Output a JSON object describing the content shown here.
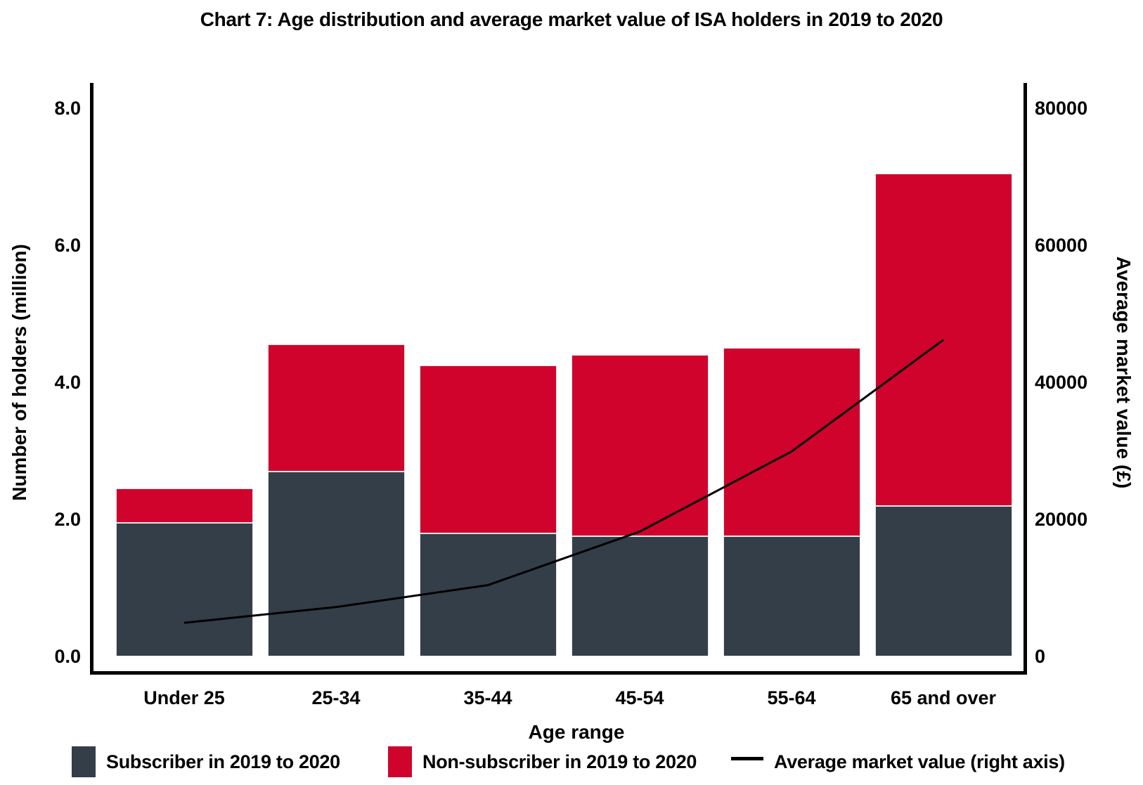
{
  "title": "Chart 7: Age distribution and average market value of ISA holders in 2019 to 2020",
  "colors": {
    "subscriber_bar": "#333e48",
    "non_subscriber_bar": "#d0032d",
    "line": "#000000",
    "axis": "#000000"
  },
  "chart_data": {
    "type": "bar",
    "stacked": true,
    "grid": false,
    "legend_position": "bottom",
    "title": "Chart 7: Age distribution and average market value of ISA holders in 2019 to 2020",
    "xlabel": "Age range",
    "ylabel_left": "Number of holders (million)",
    "ylabel_right": "Average market value (£)",
    "categories": [
      "Under 25",
      "25-34",
      "35-44",
      "45-54",
      "55-64",
      "65 and over"
    ],
    "series": [
      {
        "name": "Subscriber in 2019 to 2020",
        "type": "bar",
        "axis": "left",
        "color": "#333e48",
        "values": [
          1.95,
          2.7,
          1.8,
          1.75,
          1.75,
          2.2
        ]
      },
      {
        "name": "Non-subscriber in 2019 to 2020",
        "type": "bar",
        "axis": "left",
        "color": "#d0032d",
        "values": [
          0.5,
          1.85,
          2.45,
          2.65,
          2.75,
          4.85
        ]
      },
      {
        "name": "Average market value (right axis)",
        "type": "line",
        "axis": "right",
        "color": "#000000",
        "values": [
          4900,
          7200,
          10400,
          18200,
          29900,
          46200
        ]
      }
    ],
    "stacked_totals": [
      2.45,
      4.55,
      4.25,
      4.4,
      4.5,
      7.05
    ],
    "left_axis": {
      "ticks": [
        "0.0",
        "2.0",
        "4.0",
        "6.0",
        "8.0"
      ],
      "tick_values": [
        0,
        2,
        4,
        6,
        8
      ],
      "ylim": [
        0,
        8.4
      ]
    },
    "right_axis": {
      "ticks": [
        "0",
        "20000",
        "40000",
        "60000",
        "80000"
      ],
      "tick_values": [
        0,
        20000,
        40000,
        60000,
        80000
      ],
      "ylim": [
        0,
        84000
      ]
    }
  },
  "legend": {
    "items": [
      {
        "label": "Subscriber in 2019 to 2020",
        "marker": "square",
        "color": "#333e48"
      },
      {
        "label": "Non-subscriber in 2019 to 2020",
        "marker": "square",
        "color": "#d0032d"
      },
      {
        "label": "Average market value (right axis)",
        "marker": "line",
        "color": "#000000"
      }
    ]
  }
}
